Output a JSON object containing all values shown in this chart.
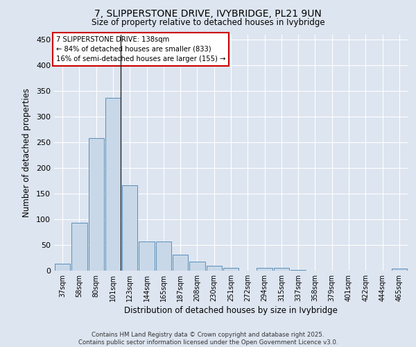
{
  "title_line1": "7, SLIPPERSTONE DRIVE, IVYBRIDGE, PL21 9UN",
  "title_line2": "Size of property relative to detached houses in Ivybridge",
  "xlabel": "Distribution of detached houses by size in Ivybridge",
  "ylabel": "Number of detached properties",
  "annotation_line1": "7 SLIPPERSTONE DRIVE: 138sqm",
  "annotation_line2": "← 84% of detached houses are smaller (833)",
  "annotation_line3": "16% of semi-detached houses are larger (155) →",
  "categories": [
    "37sqm",
    "58sqm",
    "80sqm",
    "101sqm",
    "123sqm",
    "144sqm",
    "165sqm",
    "187sqm",
    "208sqm",
    "230sqm",
    "251sqm",
    "272sqm",
    "294sqm",
    "315sqm",
    "337sqm",
    "358sqm",
    "379sqm",
    "401sqm",
    "422sqm",
    "444sqm",
    "465sqm"
  ],
  "values": [
    13,
    93,
    258,
    337,
    167,
    57,
    57,
    31,
    17,
    10,
    6,
    0,
    5,
    5,
    1,
    0,
    0,
    0,
    0,
    0,
    4
  ],
  "bar_color": "#c8d8e8",
  "bar_edge_color": "#5b8db8",
  "highlight_index": 3,
  "highlight_line_color": "#222222",
  "ylim": [
    0,
    460
  ],
  "yticks": [
    0,
    50,
    100,
    150,
    200,
    250,
    300,
    350,
    400,
    450
  ],
  "background_color": "#dde5f0",
  "plot_bg_color": "#dde5f0",
  "grid_color": "#ffffff",
  "footer_line1": "Contains HM Land Registry data © Crown copyright and database right 2025.",
  "footer_line2": "Contains public sector information licensed under the Open Government Licence v3.0.",
  "annotation_box_color": "#cc0000",
  "figsize": [
    6.0,
    5.0
  ],
  "dpi": 100
}
